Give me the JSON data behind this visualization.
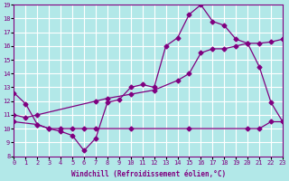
{
  "xlabel": "Windchill (Refroidissement éolien,°C)",
  "bg_color": "#b2e8e8",
  "line_color": "#800080",
  "grid_color": "#ffffff",
  "xmin": 0,
  "xmax": 23,
  "ymin": 8,
  "ymax": 19,
  "xticks": [
    0,
    1,
    2,
    3,
    4,
    5,
    6,
    7,
    8,
    9,
    10,
    11,
    12,
    13,
    14,
    15,
    16,
    17,
    18,
    19,
    20,
    21,
    22,
    23
  ],
  "yticks": [
    8,
    9,
    10,
    11,
    12,
    13,
    14,
    15,
    16,
    17,
    18,
    19
  ],
  "series1_x": [
    0,
    1,
    2,
    3,
    4,
    5,
    6,
    7,
    8,
    9,
    10,
    11,
    12,
    13,
    14,
    15,
    16,
    17,
    18,
    19,
    20,
    21,
    22,
    23
  ],
  "series1_y": [
    12.6,
    11.8,
    10.3,
    10.0,
    9.8,
    9.5,
    8.4,
    9.3,
    11.9,
    12.1,
    13.0,
    13.2,
    13.0,
    16.0,
    16.6,
    18.3,
    19.0,
    17.8,
    17.5,
    16.5,
    16.2,
    14.5,
    11.9,
    10.5
  ],
  "series2_x": [
    0,
    2,
    3,
    4,
    5,
    6,
    7,
    10,
    15,
    20,
    21,
    22,
    23
  ],
  "series2_y": [
    10.5,
    10.3,
    10.0,
    10.0,
    10.0,
    10.0,
    10.0,
    10.0,
    10.0,
    10.0,
    10.0,
    10.5,
    10.5
  ],
  "series3_x": [
    0,
    1,
    2,
    7,
    8,
    10,
    12,
    14,
    15,
    16,
    17,
    18,
    19,
    20,
    21,
    22,
    23
  ],
  "series3_y": [
    11.0,
    10.8,
    11.0,
    12.0,
    12.2,
    12.5,
    12.8,
    13.5,
    14.0,
    15.5,
    15.8,
    15.8,
    16.0,
    16.2,
    16.2,
    16.3,
    16.5
  ],
  "marker": "D",
  "markersize": 2.5,
  "linewidth": 0.9
}
